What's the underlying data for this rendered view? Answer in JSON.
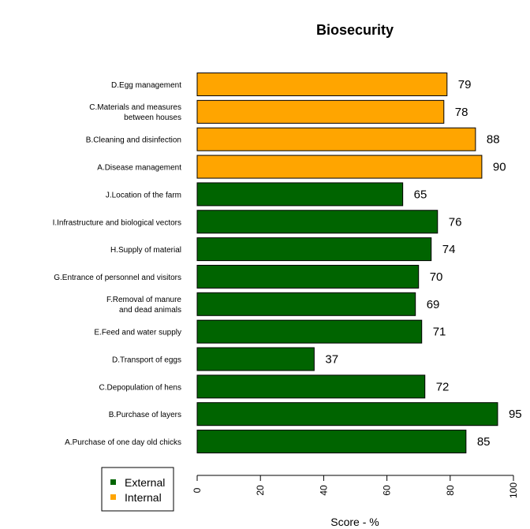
{
  "chart_data": {
    "type": "bar",
    "orientation": "horizontal",
    "title": "Biosecurity",
    "xlabel": "Score - %",
    "ylabel": "",
    "xlim": [
      0,
      100
    ],
    "ticks": [
      "0",
      "20",
      "40",
      "60",
      "80",
      "100"
    ],
    "categories": [
      "D.Egg management",
      "C.Materials and measures\nbetween houses",
      "B.Cleaning and disinfection",
      "A.Disease management",
      "J.Location of the farm",
      "I.Infrastructure and biological vectors",
      "H.Supply of material",
      "G.Entrance of personnel and visitors",
      "F.Removal of manure\nand dead animals",
      "E.Feed and water supply",
      "D.Transport of eggs",
      "C.Depopulation of hens",
      "B.Purchase of layers",
      "A.Purchase of one day old chicks"
    ],
    "values": [
      79,
      78,
      88,
      90,
      65,
      76,
      74,
      70,
      69,
      71,
      37,
      72,
      95,
      85
    ],
    "groups": [
      "Internal",
      "Internal",
      "Internal",
      "Internal",
      "External",
      "External",
      "External",
      "External",
      "External",
      "External",
      "External",
      "External",
      "External",
      "External"
    ],
    "legend": {
      "position": "bottom-left",
      "entries": [
        {
          "name": "External",
          "color": "#006400"
        },
        {
          "name": "Internal",
          "color": "#FFA500"
        }
      ]
    },
    "colors": {
      "External": "#006400",
      "Internal": "#FFA500"
    },
    "grid": false
  }
}
